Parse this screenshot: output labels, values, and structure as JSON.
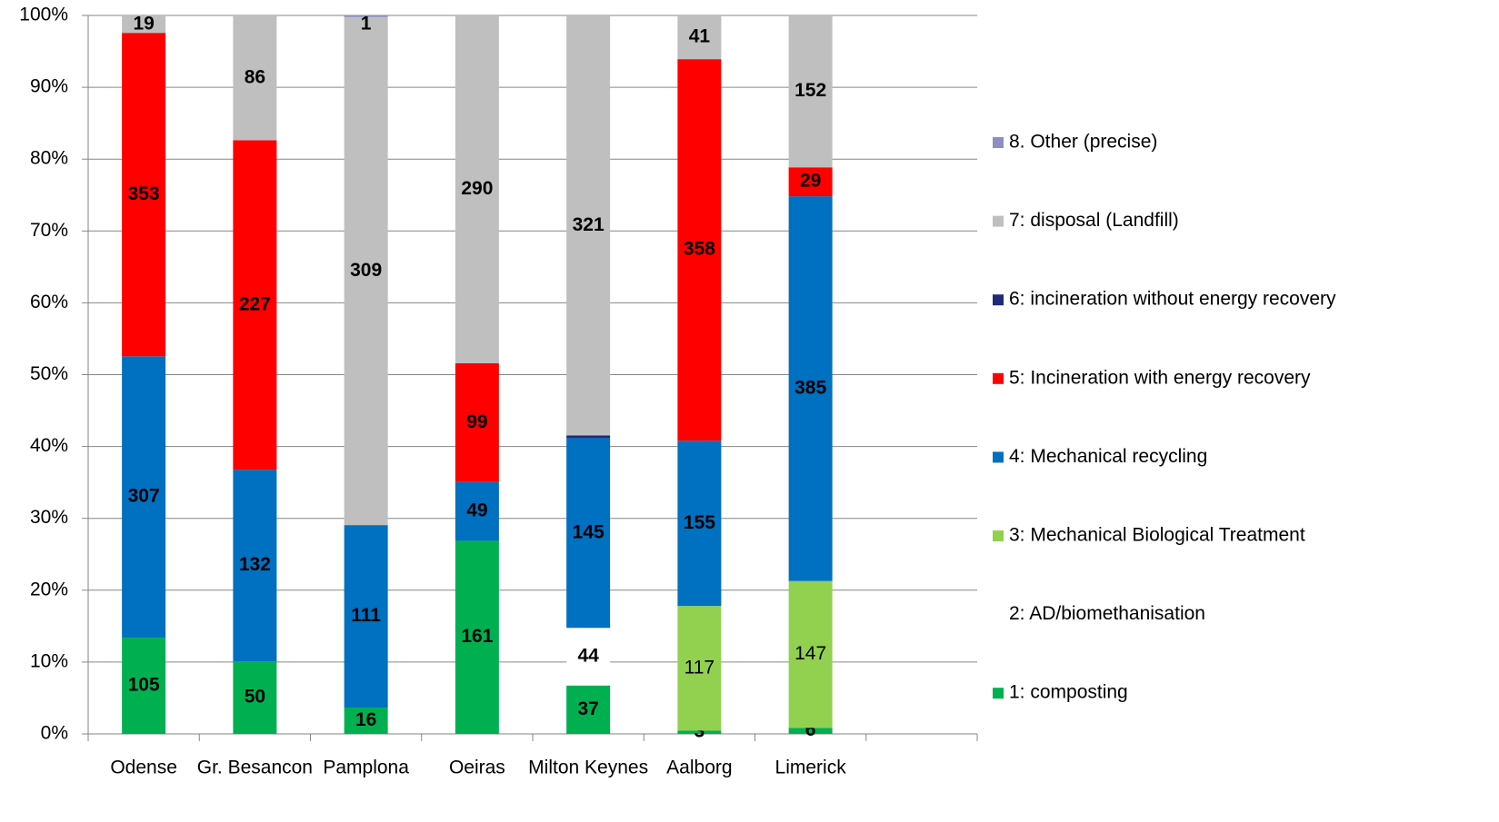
{
  "chart_data": {
    "type": "bar",
    "stacking": "percent",
    "categories": [
      "Odense",
      "Gr. Besancon",
      "Pamplona",
      "Oeiras",
      "Milton Keynes",
      "Aalborg",
      "Limerick",
      null
    ],
    "series": [
      {
        "name": "1: composting",
        "color": "#00b050",
        "values": [
          105,
          50,
          16,
          161,
          37,
          3,
          6,
          null
        ]
      },
      {
        "name": "2: AD/biomethanisation",
        "color": "#ffffff",
        "values": [
          null,
          null,
          null,
          null,
          44,
          null,
          null,
          null
        ]
      },
      {
        "name": "3: Mechanical Biological Treatment",
        "color": "#92d050",
        "bold": false,
        "values": [
          null,
          null,
          null,
          null,
          null,
          117,
          147,
          null
        ]
      },
      {
        "name": "4: Mechanical recycling",
        "color": "#0070c0",
        "values": [
          307,
          132,
          111,
          49,
          145,
          155,
          385,
          null
        ]
      },
      {
        "name": "5: Incineration with energy recovery",
        "color": "#ff0000",
        "values": [
          353,
          227,
          null,
          99,
          null,
          358,
          29,
          null
        ]
      },
      {
        "name": "6: incineration without energy recovery",
        "color": "#1f2a7a",
        "labels": false,
        "values": [
          null,
          null,
          null,
          null,
          2,
          null,
          null,
          null
        ]
      },
      {
        "name": "7: disposal (Landfill)",
        "color": "#bfbfbf",
        "values": [
          19,
          86,
          309,
          290,
          321,
          41,
          152,
          null
        ]
      },
      {
        "name": "8. Other (precise)",
        "color": "#8e8ec2",
        "values": [
          null,
          null,
          1,
          null,
          null,
          null,
          null,
          null
        ]
      }
    ],
    "ylim": [
      0,
      100
    ],
    "yticks": [
      {
        "value": 0,
        "label": "0%"
      },
      {
        "value": 10,
        "label": "10%"
      },
      {
        "value": 20,
        "label": "20%"
      },
      {
        "value": 30,
        "label": "30%"
      },
      {
        "value": 40,
        "label": "40%"
      },
      {
        "value": 50,
        "label": "50%"
      },
      {
        "value": 60,
        "label": "60%"
      },
      {
        "value": 70,
        "label": "70%"
      },
      {
        "value": 80,
        "label": "80%"
      },
      {
        "value": 90,
        "label": "90%"
      },
      {
        "value": 100,
        "label": "100%"
      }
    ],
    "grid": true,
    "legend": "right"
  }
}
